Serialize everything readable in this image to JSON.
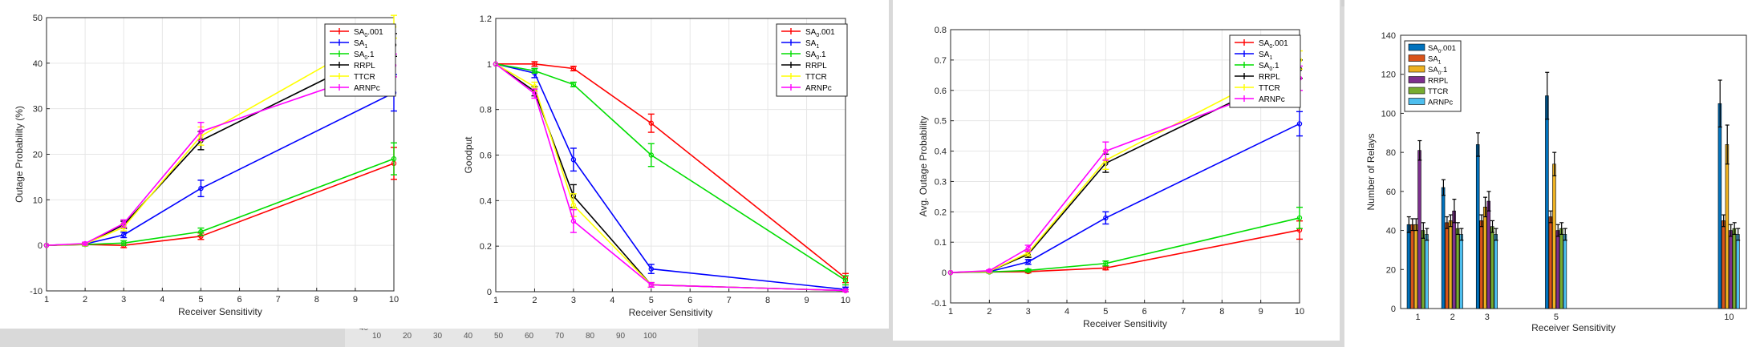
{
  "background_ruler": {
    "left_label": "40",
    "ticks": [
      "10",
      "20",
      "30",
      "40",
      "50",
      "60",
      "70",
      "80",
      "90",
      "100"
    ]
  },
  "series_colors": {
    "SA0.001": "#ff0000",
    "SA1": "#0000ff",
    "SA0.1": "#00dd00",
    "RRPL": "#000000",
    "TTCR": "#ffff00",
    "ARNPc": "#ff00ff"
  },
  "bar_colors": [
    "#0072bd",
    "#d95319",
    "#edb120",
    "#7e2f8e",
    "#77ac30",
    "#4dbeee"
  ],
  "chart_data": [
    {
      "type": "line",
      "xlabel": "Receiver Sensitivity",
      "ylabel": "Outage Probability (%)",
      "xlim": [
        1,
        10
      ],
      "ylim": [
        -10,
        50
      ],
      "xticks": [
        1,
        2,
        3,
        4,
        5,
        6,
        7,
        8,
        9,
        10
      ],
      "yticks": [
        -10,
        0,
        10,
        20,
        30,
        40,
        50
      ],
      "x": [
        1,
        2,
        3,
        5,
        10
      ],
      "legend": "top-right",
      "series": [
        {
          "name": "SA",
          "sub": "0",
          "suffix": ".001",
          "values": [
            0,
            0.2,
            0,
            2,
            18
          ],
          "err": [
            0,
            0.3,
            0.5,
            0.7,
            3.5
          ]
        },
        {
          "name": "SA",
          "sub": "1",
          "suffix": "",
          "values": [
            0,
            0.3,
            2.3,
            12.5,
            33.5
          ],
          "err": [
            0,
            0.3,
            0.6,
            1.8,
            4
          ]
        },
        {
          "name": "SA",
          "sub": "0",
          "suffix": ".1",
          "values": [
            0,
            0.2,
            0.5,
            3,
            19
          ],
          "err": [
            0,
            0.3,
            0.5,
            0.8,
            3.5
          ]
        },
        {
          "name": "RRPL",
          "sub": "",
          "suffix": "",
          "values": [
            0,
            0.3,
            4.5,
            23,
            44
          ],
          "err": [
            0,
            0.3,
            0.8,
            2,
            2.5
          ]
        },
        {
          "name": "TTCR",
          "sub": "",
          "suffix": "",
          "values": [
            0,
            0.3,
            4,
            24,
            48
          ],
          "err": [
            0,
            0.3,
            0.8,
            2,
            2.5
          ]
        },
        {
          "name": "ARNPc",
          "sub": "",
          "suffix": "",
          "values": [
            0,
            0.4,
            4.8,
            25,
            39.5
          ],
          "err": [
            0,
            0.3,
            0.8,
            2,
            2.5
          ]
        }
      ]
    },
    {
      "type": "line",
      "xlabel": "Receiver Sensitivity",
      "ylabel": "Goodput",
      "xlim": [
        1,
        10
      ],
      "ylim": [
        0,
        1.2
      ],
      "xticks": [
        1,
        2,
        3,
        4,
        5,
        6,
        7,
        8,
        9,
        10
      ],
      "yticks": [
        0,
        0.2,
        0.4,
        0.6,
        0.8,
        1,
        1.2
      ],
      "x": [
        1,
        2,
        3,
        5,
        10
      ],
      "legend": "top-right",
      "series": [
        {
          "name": "SA",
          "sub": "0",
          "suffix": ".001",
          "values": [
            1,
            1,
            0.98,
            0.74,
            0.06
          ],
          "err": [
            0,
            0.01,
            0.01,
            0.04,
            0.02
          ]
        },
        {
          "name": "SA",
          "sub": "1",
          "suffix": "",
          "values": [
            1,
            0.96,
            0.58,
            0.1,
            0.01
          ],
          "err": [
            0,
            0.02,
            0.05,
            0.02,
            0.01
          ]
        },
        {
          "name": "SA",
          "sub": "0",
          "suffix": ".1",
          "values": [
            1,
            0.97,
            0.91,
            0.6,
            0.05
          ],
          "err": [
            0,
            0.01,
            0.01,
            0.05,
            0.02
          ]
        },
        {
          "name": "RRPL",
          "sub": "",
          "suffix": "",
          "values": [
            1,
            0.88,
            0.42,
            0.03,
            0.005
          ],
          "err": [
            0,
            0.02,
            0.05,
            0.01,
            0.005
          ]
        },
        {
          "name": "TTCR",
          "sub": "",
          "suffix": "",
          "values": [
            1,
            0.9,
            0.38,
            0.03,
            0.005
          ],
          "err": [
            0,
            0.02,
            0.05,
            0.01,
            0.005
          ]
        },
        {
          "name": "ARNPc",
          "sub": "",
          "suffix": "",
          "values": [
            1,
            0.87,
            0.31,
            0.03,
            0.005
          ],
          "err": [
            0,
            0.02,
            0.05,
            0.01,
            0.005
          ]
        }
      ]
    },
    {
      "type": "line",
      "xlabel": "Receiver Sensitivity",
      "ylabel": "Avg. Outage Probability",
      "xlim": [
        1,
        10
      ],
      "ylim": [
        -0.1,
        0.8
      ],
      "xticks": [
        1,
        2,
        3,
        4,
        5,
        6,
        7,
        8,
        9,
        10
      ],
      "yticks": [
        -0.1,
        0,
        0.1,
        0.2,
        0.3,
        0.4,
        0.5,
        0.6,
        0.7,
        0.8
      ],
      "x": [
        1,
        2,
        3,
        5,
        10
      ],
      "legend": "top-right",
      "series": [
        {
          "name": "SA",
          "sub": "0",
          "suffix": ".001",
          "values": [
            0,
            0.002,
            0.003,
            0.015,
            0.14
          ],
          "err": [
            0,
            0.003,
            0.004,
            0.006,
            0.03
          ]
        },
        {
          "name": "SA",
          "sub": "1",
          "suffix": "",
          "values": [
            0,
            0.003,
            0.035,
            0.18,
            0.49
          ],
          "err": [
            0,
            0.003,
            0.008,
            0.02,
            0.04
          ]
        },
        {
          "name": "SA",
          "sub": "0",
          "suffix": ".1",
          "values": [
            0,
            0.002,
            0.007,
            0.03,
            0.18
          ],
          "err": [
            0,
            0.003,
            0.004,
            0.008,
            0.035
          ]
        },
        {
          "name": "RRPL",
          "sub": "",
          "suffix": "",
          "values": [
            0,
            0.004,
            0.06,
            0.36,
            0.67
          ],
          "err": [
            0,
            0.003,
            0.01,
            0.03,
            0.03
          ]
        },
        {
          "name": "TTCR",
          "sub": "",
          "suffix": "",
          "values": [
            0,
            0.004,
            0.065,
            0.37,
            0.7
          ],
          "err": [
            0,
            0.003,
            0.01,
            0.03,
            0.03
          ]
        },
        {
          "name": "ARNPc",
          "sub": "",
          "suffix": "",
          "values": [
            0,
            0.006,
            0.08,
            0.4,
            0.64
          ],
          "err": [
            0,
            0.003,
            0.01,
            0.03,
            0.04
          ]
        }
      ]
    },
    {
      "type": "bar",
      "xlabel": "Receiver Sensitivity",
      "ylabel": "Number of Relays",
      "xlim": [
        0.5,
        10.5
      ],
      "ylim": [
        0,
        140
      ],
      "xticks": [
        1,
        2,
        3,
        5,
        10
      ],
      "yticks": [
        0,
        20,
        40,
        60,
        80,
        100,
        120,
        140
      ],
      "categories": [
        1,
        2,
        3,
        5,
        10
      ],
      "legend": "top-left",
      "series": [
        {
          "name": "SA",
          "sub": "0",
          "suffix": ".001",
          "values": [
            43,
            62,
            84,
            109,
            105
          ],
          "err": [
            4,
            4,
            6,
            12,
            12
          ]
        },
        {
          "name": "SA",
          "sub": "1",
          "suffix": "",
          "values": [
            43,
            44,
            45,
            47,
            45
          ],
          "err": [
            3,
            3,
            3,
            3,
            3
          ]
        },
        {
          "name": "SA",
          "sub": "0",
          "suffix": ".1",
          "values": [
            43,
            45,
            52,
            74,
            84
          ],
          "err": [
            3,
            3,
            5,
            6,
            10
          ]
        },
        {
          "name": "RRPL",
          "sub": "",
          "suffix": "",
          "values": [
            81,
            50,
            55,
            40,
            40
          ],
          "err": [
            5,
            6,
            5,
            3,
            3
          ]
        },
        {
          "name": "TTCR",
          "sub": "",
          "suffix": "",
          "values": [
            40,
            41,
            42,
            41,
            41
          ],
          "err": [
            4,
            3,
            3,
            3,
            3
          ]
        },
        {
          "name": "ARNPc",
          "sub": "",
          "suffix": "",
          "values": [
            38,
            38,
            38,
            38,
            38
          ],
          "err": [
            3,
            3,
            3,
            3,
            3
          ]
        }
      ]
    }
  ]
}
